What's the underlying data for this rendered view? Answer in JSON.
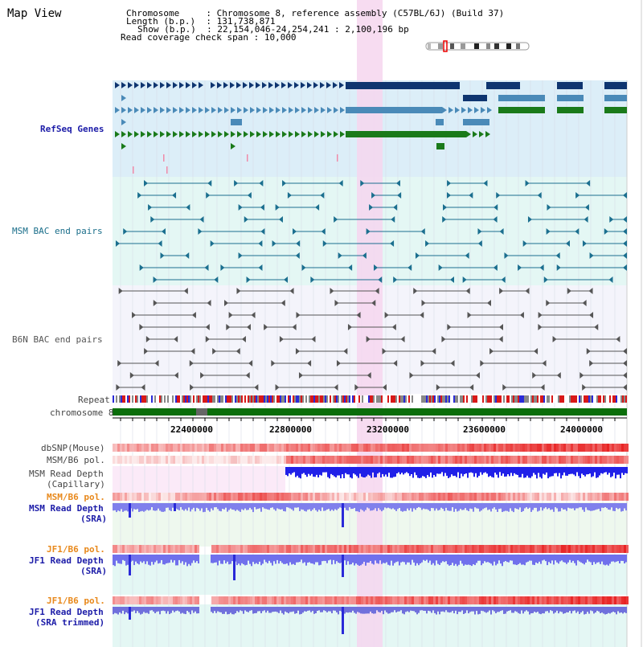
{
  "app": {
    "title": "Map View"
  },
  "info": {
    "chromosome_label": "Chromosome",
    "chromosome_value": ": Chromosome 8, reference assembly (C57BL/6J) (Build 37)",
    "length_label": "Length (b.p.)",
    "length_value": ": 131,738,871",
    "show_label": "Show (b.p.)",
    "show_value": ": 22,154,046-24,254,241 : 2,100,196 bp",
    "coverage_label": "Read coverage check span",
    "coverage_value": ": 10,000"
  },
  "tracks": {
    "refseq": "RefSeq Genes",
    "msm_bac": "MSM BAC end pairs",
    "b6n_bac": "B6N BAC end pairs",
    "repeat": "Repeat",
    "chromosome": "chromosome 8",
    "dbsnp": "dbSNP(Mouse)",
    "msm_b6_pol_1": "MSM/B6 pol.",
    "msm_read_depth_cap_1": "MSM Read Depth",
    "msm_read_depth_cap_2": "(Capillary)",
    "msm_b6_pol_2": "MSM/B6 pol.",
    "msm_read_depth_sra_1": "MSM Read Depth",
    "msm_read_depth_sra_2": "(SRA)",
    "jf1_b6_pol_1": "JF1/B6 pol.",
    "jf1_read_depth_sra_1": "JF1 Read Depth",
    "jf1_read_depth_sra_2": "(SRA)",
    "jf1_b6_pol_2": "JF1/B6 pol.",
    "jf1_read_depth_trim_1": "JF1 Read Depth",
    "jf1_read_depth_trim_2": "(SRA trimmed)"
  },
  "axis": {
    "ticks": [
      "22400000",
      "22800000",
      "23200000",
      "23600000",
      "24000000"
    ]
  },
  "colors": {
    "refseq_bg": "#dff0f8",
    "msm_bg": "#e6f8f5",
    "gene_dark": "#0f3570",
    "gene_mid": "#4a8ab8",
    "gene_green": "#1a7a1a",
    "highlight": "#f8d8f0",
    "depth_blue": "#3030e0",
    "depth_light": "#8a8af0",
    "pol_red": "#e83030"
  }
}
